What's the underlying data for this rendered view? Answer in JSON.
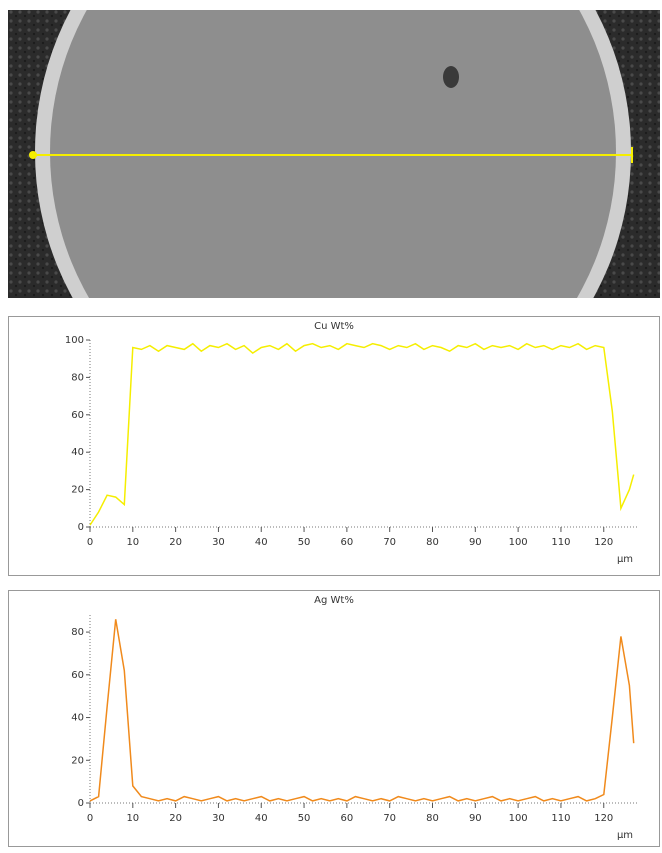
{
  "chart_data": [
    {
      "type": "line",
      "title": "Cu Wt%",
      "x_label": "µm",
      "color": "#f5ee00",
      "x": [
        0,
        2,
        4,
        6,
        8,
        10,
        12,
        14,
        16,
        18,
        20,
        22,
        24,
        26,
        28,
        30,
        32,
        34,
        36,
        38,
        40,
        42,
        44,
        46,
        48,
        50,
        52,
        54,
        56,
        58,
        60,
        62,
        64,
        66,
        68,
        70,
        72,
        74,
        76,
        78,
        80,
        82,
        84,
        86,
        88,
        90,
        92,
        94,
        96,
        98,
        100,
        102,
        104,
        106,
        108,
        110,
        112,
        114,
        116,
        118,
        120,
        122,
        124,
        126,
        127
      ],
      "values": [
        1,
        8,
        17,
        16,
        12,
        96,
        95,
        97,
        94,
        97,
        96,
        95,
        98,
        94,
        97,
        96,
        98,
        95,
        97,
        93,
        96,
        97,
        95,
        98,
        94,
        97,
        98,
        96,
        97,
        95,
        98,
        97,
        96,
        98,
        97,
        95,
        97,
        96,
        98,
        95,
        97,
        96,
        94,
        97,
        96,
        98,
        95,
        97,
        96,
        97,
        95,
        98,
        96,
        97,
        95,
        97,
        96,
        98,
        95,
        97,
        96,
        62,
        10,
        20,
        28
      ],
      "xlim": [
        0,
        128
      ],
      "ylim": [
        0,
        100
      ],
      "xticks": [
        0,
        10,
        20,
        30,
        40,
        50,
        60,
        70,
        80,
        90,
        100,
        110,
        120
      ],
      "yticks": [
        0,
        20,
        40,
        60,
        80,
        100
      ]
    },
    {
      "type": "line",
      "title": "Ag Wt%",
      "x_label": "µm",
      "color": "#f08a1c",
      "x": [
        0,
        2,
        4,
        6,
        8,
        10,
        12,
        14,
        16,
        18,
        20,
        22,
        24,
        26,
        28,
        30,
        32,
        34,
        36,
        38,
        40,
        42,
        44,
        46,
        48,
        50,
        52,
        54,
        56,
        58,
        60,
        62,
        64,
        66,
        68,
        70,
        72,
        74,
        76,
        78,
        80,
        82,
        84,
        86,
        88,
        90,
        92,
        94,
        96,
        98,
        100,
        102,
        104,
        106,
        108,
        110,
        112,
        114,
        116,
        118,
        120,
        122,
        124,
        126,
        127
      ],
      "values": [
        1,
        3,
        45,
        86,
        62,
        8,
        3,
        2,
        1,
        2,
        1,
        3,
        2,
        1,
        2,
        3,
        1,
        2,
        1,
        2,
        3,
        1,
        2,
        1,
        2,
        3,
        1,
        2,
        1,
        2,
        1,
        3,
        2,
        1,
        2,
        1,
        3,
        2,
        1,
        2,
        1,
        2,
        3,
        1,
        2,
        1,
        2,
        3,
        1,
        2,
        1,
        2,
        3,
        1,
        2,
        1,
        2,
        3,
        1,
        2,
        4,
        40,
        78,
        55,
        28
      ],
      "xlim": [
        0,
        128
      ],
      "ylim": [
        0,
        88
      ],
      "xticks": [
        0,
        10,
        20,
        30,
        40,
        50,
        60,
        70,
        80,
        90,
        100,
        110,
        120
      ],
      "yticks": [
        0,
        20,
        40,
        60,
        80
      ]
    }
  ]
}
